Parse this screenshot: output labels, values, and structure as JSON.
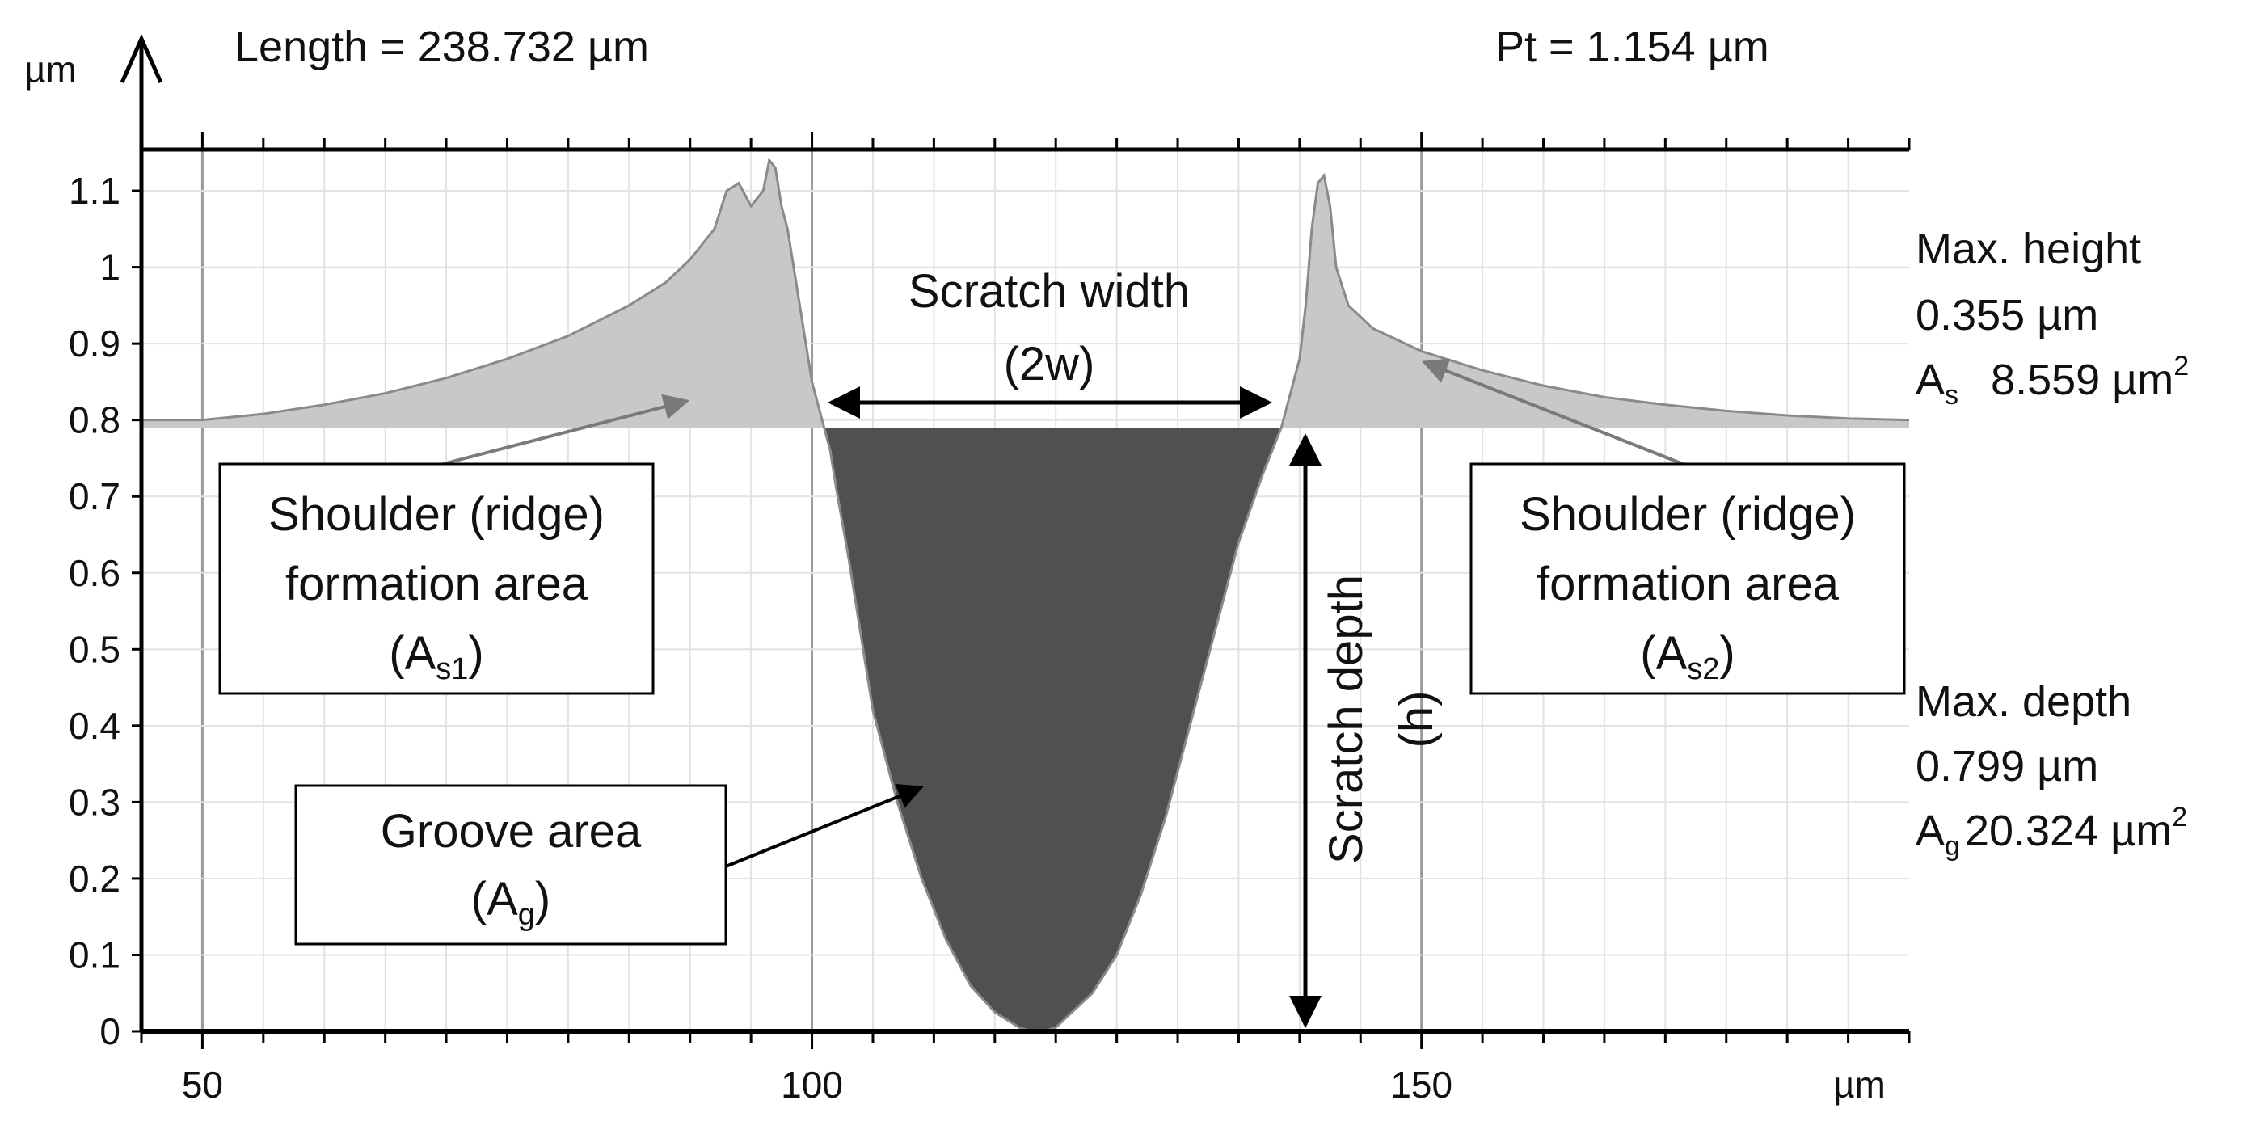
{
  "chart_data": {
    "type": "area",
    "title": "",
    "xlabel": "µm",
    "ylabel": "µm",
    "xlim": [
      45,
      190
    ],
    "ylim": [
      0,
      1.154
    ],
    "grid": true,
    "xticks": [
      50,
      100,
      150
    ],
    "yticks": [
      0,
      0.1,
      0.2,
      0.3,
      0.4,
      0.5,
      0.6,
      0.7,
      0.8,
      0.9,
      1,
      1.1
    ],
    "xtick_labels": [
      "50",
      "100",
      "150"
    ],
    "ytick_labels": [
      "0",
      "0.1",
      "0.2",
      "0.3",
      "0.4",
      "0.5",
      "0.6",
      "0.7",
      "0.8",
      "0.9",
      "1",
      "1.1"
    ],
    "reference_level": 0.79,
    "series": [
      {
        "x": [
          45,
          50,
          55,
          60,
          65,
          70,
          75,
          80,
          85,
          88,
          90,
          92,
          93,
          94,
          95,
          96,
          96.5,
          97,
          97.5,
          98,
          99,
          100,
          101,
          101.5,
          102,
          103,
          104,
          105,
          107,
          109,
          111,
          113,
          115,
          117,
          118,
          119,
          120,
          121,
          123,
          125,
          127,
          129,
          131,
          133,
          135,
          137,
          138,
          138.5,
          139,
          140,
          140.5,
          141,
          141.5,
          142,
          142.5,
          143,
          144,
          146,
          150,
          155,
          160,
          165,
          170,
          175,
          180,
          185,
          190
        ],
        "y": [
          0.8,
          0.8,
          0.808,
          0.82,
          0.835,
          0.855,
          0.88,
          0.91,
          0.95,
          0.98,
          1.01,
          1.05,
          1.1,
          1.11,
          1.08,
          1.1,
          1.14,
          1.13,
          1.08,
          1.05,
          0.95,
          0.85,
          0.79,
          0.76,
          0.71,
          0.62,
          0.52,
          0.42,
          0.3,
          0.2,
          0.12,
          0.06,
          0.025,
          0.005,
          0.0,
          0.0,
          0.005,
          0.02,
          0.05,
          0.1,
          0.18,
          0.28,
          0.4,
          0.52,
          0.64,
          0.73,
          0.77,
          0.79,
          0.82,
          0.88,
          0.95,
          1.05,
          1.11,
          1.12,
          1.08,
          1.0,
          0.95,
          0.92,
          0.89,
          0.865,
          0.845,
          0.83,
          0.82,
          0.812,
          0.806,
          0.802,
          0.8
        ]
      }
    ],
    "header_left": "Length = 238.732 µm",
    "header_right": "Pt = 1.154 µm",
    "right_stats": {
      "height_title": "Max. height",
      "height_value": "0.355 µm",
      "as_symbol": "A",
      "as_sub": "s",
      "as_value": "8.559 µm",
      "as_sup": "2",
      "depth_title": "Max. depth",
      "depth_value": "0.799 µm",
      "ag_symbol": "A",
      "ag_sub": "g",
      "ag_value": "20.324 µm",
      "ag_sup": "2"
    },
    "annotations": {
      "scratch_width_line1": "Scratch width",
      "scratch_width_line2": "(2w)",
      "scratch_depth_line1": "Scratch depth",
      "scratch_depth_line2": "(h)",
      "shoulder_left_line1": "Shoulder (ridge)",
      "shoulder_left_line2": "formation area",
      "shoulder_left_sym_open": "(A",
      "shoulder_left_sym_sub": "s1",
      "shoulder_left_sym_close": ")",
      "shoulder_right_line1": "Shoulder (ridge)",
      "shoulder_right_line2": "formation area",
      "shoulder_right_sym_open": "(A",
      "shoulder_right_sym_sub": "s2",
      "shoulder_right_sym_close": ")",
      "groove_line1": "Groove area",
      "groove_sym_open": "(A",
      "groove_sym_sub": "g",
      "groove_sym_close": ")"
    },
    "colors": {
      "shoulder_fill": "#c8c8c8",
      "groove_fill": "#505050",
      "profile_line": "#8a8a8a",
      "grid": "#e2e2e2",
      "axis": "#000000"
    }
  }
}
